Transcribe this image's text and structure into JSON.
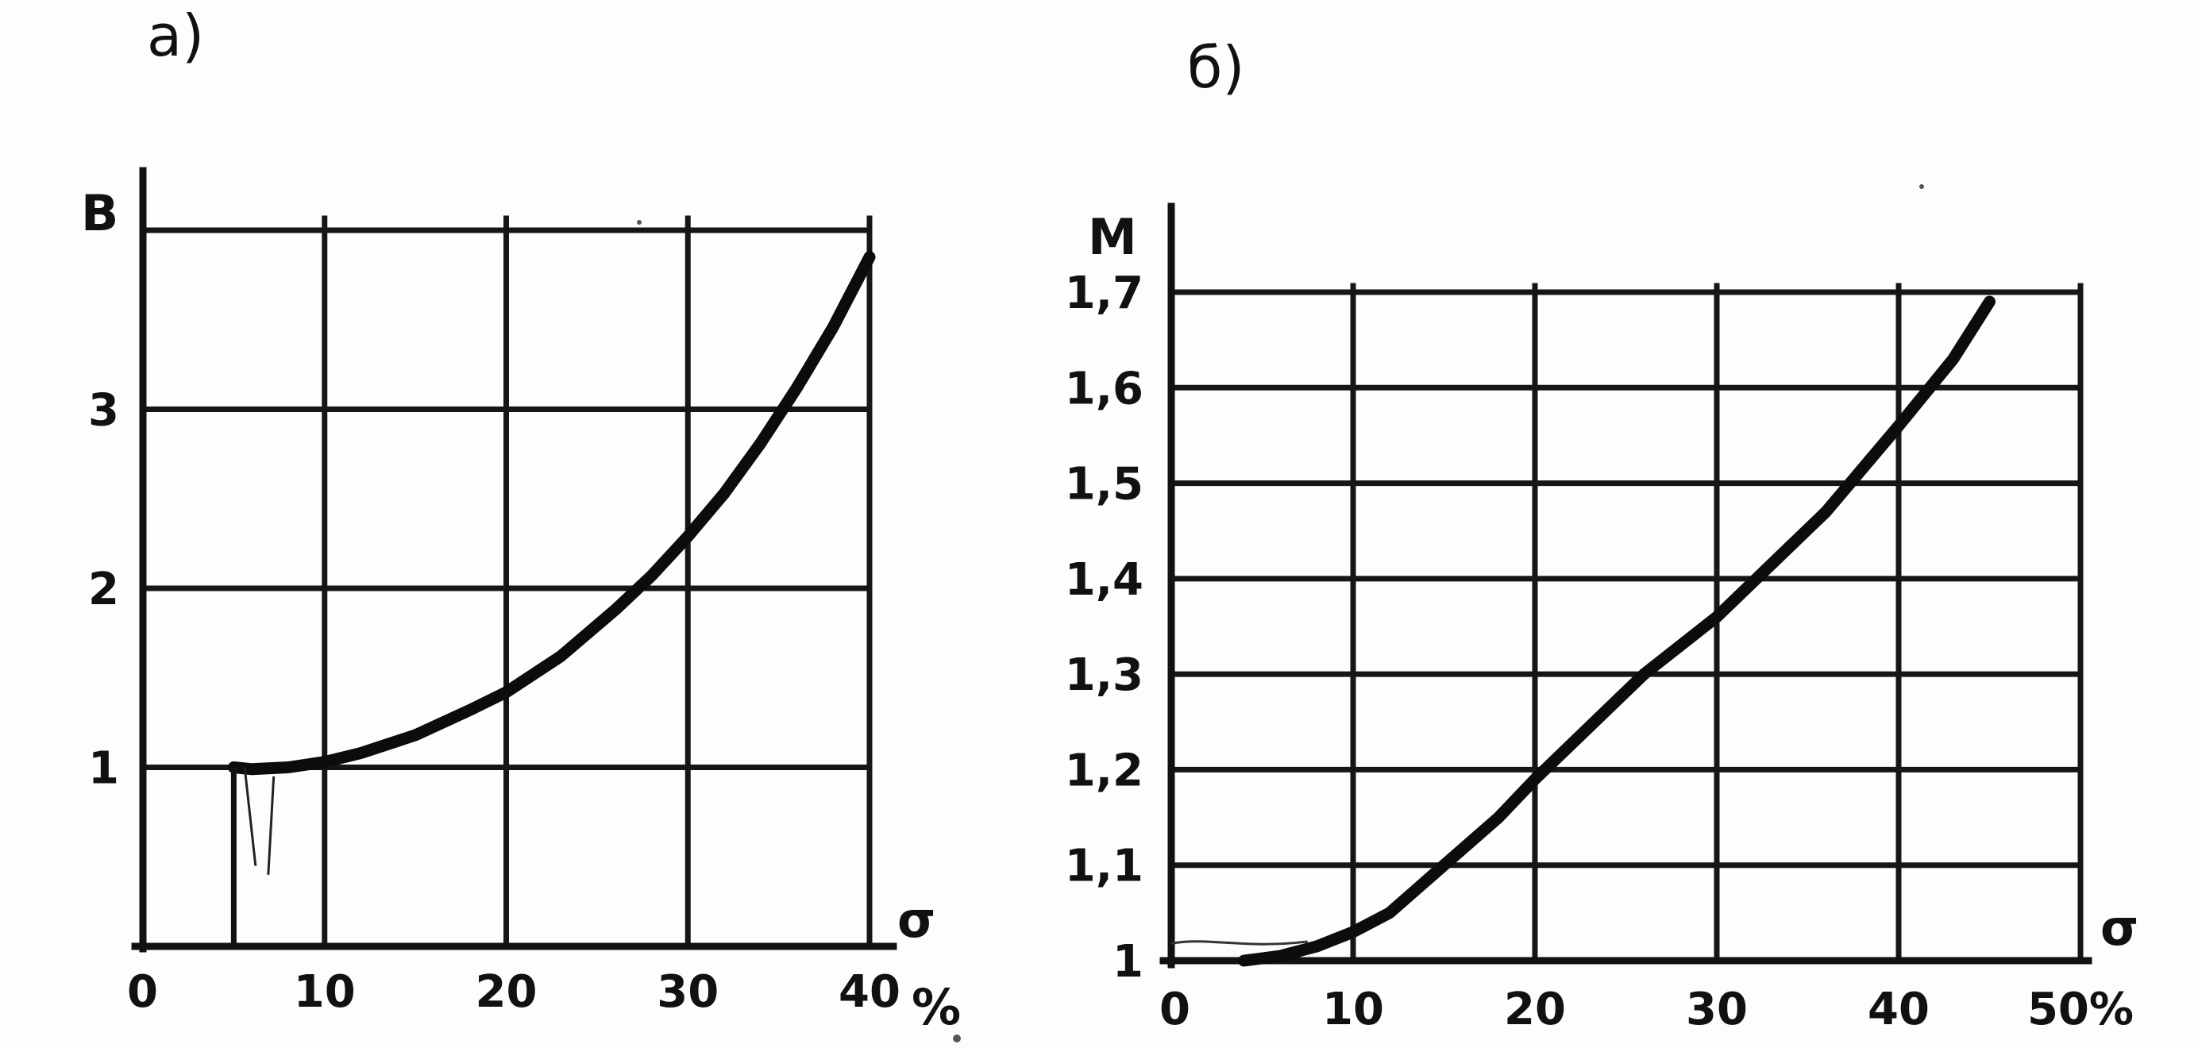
{
  "panels": [
    {
      "panel_label": "а)",
      "y_axis_label": "B",
      "x_axis_label": "σ",
      "x_unit": "%",
      "x_ticks": [
        "0",
        "10",
        "20",
        "30",
        "40"
      ],
      "y_ticks": [
        "1",
        "2",
        "3"
      ]
    },
    {
      "panel_label": "б)",
      "y_axis_label": "M",
      "x_axis_label": "σ",
      "x_unit": "",
      "x_ticks": [
        "0",
        "10",
        "20",
        "30",
        "40",
        "50%"
      ],
      "y_ticks": [
        "1",
        "1,1",
        "1,2",
        "1,3",
        "1,4",
        "1,5",
        "1,6",
        "1,7"
      ]
    }
  ],
  "chart_data": [
    {
      "type": "line",
      "title": "а)",
      "xlabel": "σ %",
      "ylabel": "B",
      "xlim": [
        0,
        40
      ],
      "ylim": [
        0,
        4
      ],
      "grid": true,
      "series": [
        {
          "x": [
            5,
            6,
            8,
            10,
            12,
            15,
            18,
            20,
            23,
            26,
            28,
            30,
            32,
            34,
            36,
            38,
            40
          ],
          "y": [
            1.0,
            0.99,
            1.0,
            1.03,
            1.08,
            1.18,
            1.32,
            1.42,
            1.62,
            1.88,
            2.07,
            2.29,
            2.53,
            2.81,
            3.12,
            3.46,
            3.85
          ]
        }
      ],
      "annotations": [
        {
          "type": "vline",
          "x": 5,
          "from_y": 0,
          "to_y": 1
        }
      ]
    },
    {
      "type": "line",
      "title": "б)",
      "xlabel": "σ",
      "ylabel": "M",
      "xlim": [
        0,
        50
      ],
      "ylim": [
        1.0,
        1.7
      ],
      "grid": true,
      "series": [
        {
          "x": [
            4,
            6,
            8,
            10,
            12,
            15,
            18,
            20,
            23,
            26,
            30,
            33,
            36,
            40,
            43,
            45
          ],
          "y": [
            1.0,
            1.005,
            1.015,
            1.03,
            1.05,
            1.1,
            1.15,
            1.19,
            1.245,
            1.3,
            1.36,
            1.415,
            1.47,
            1.56,
            1.63,
            1.69
          ]
        }
      ]
    }
  ]
}
